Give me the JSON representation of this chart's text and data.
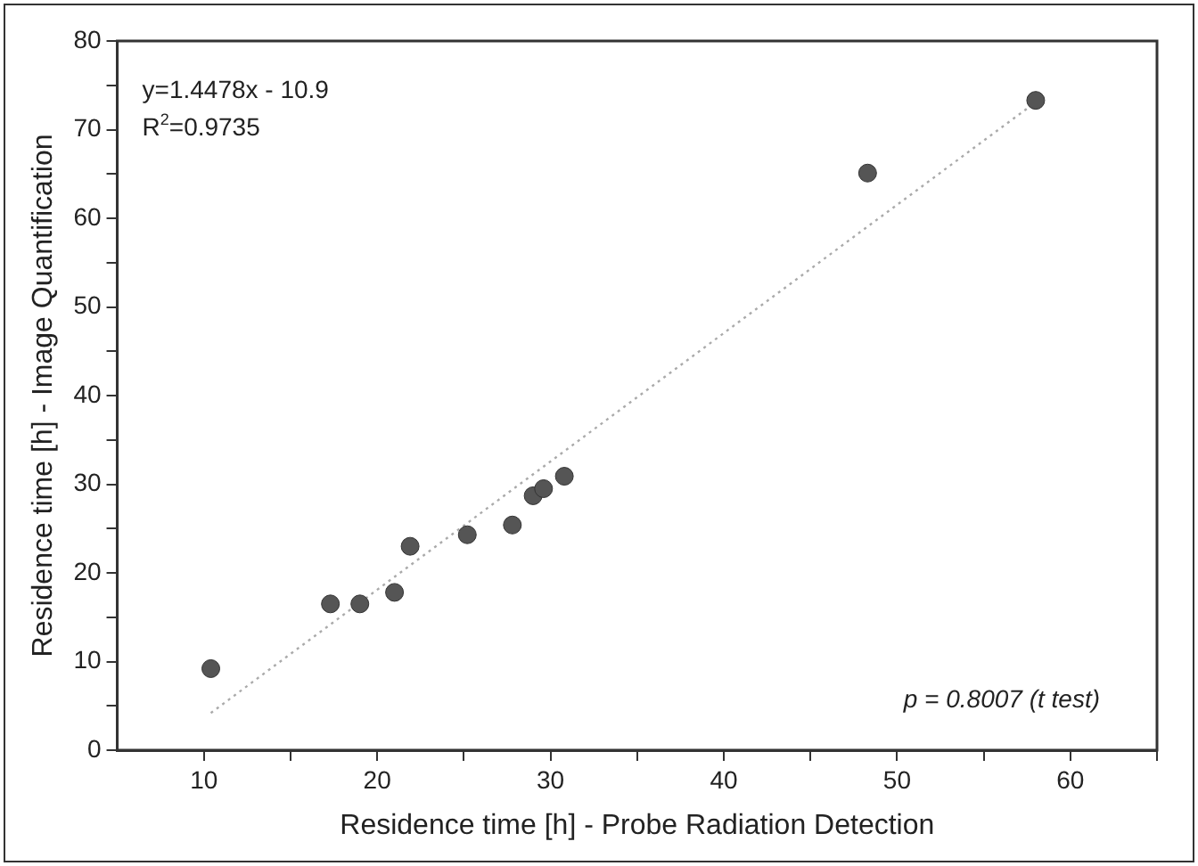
{
  "chart_data": {
    "type": "scatter",
    "xlabel": "Residence time [h] - Probe Radiation Detection",
    "ylabel": "Residence time [h] - Image Quantification",
    "x": [
      10.4,
      17.3,
      19.0,
      21.0,
      21.9,
      25.2,
      27.8,
      29.0,
      29.6,
      30.8,
      48.3,
      58.0
    ],
    "series": [
      {
        "color": "#555555",
        "marker": "circle",
        "values": [
          9.2,
          16.5,
          16.5,
          17.8,
          23.0,
          24.3,
          25.4,
          28.7,
          29.5,
          30.9,
          65.1,
          73.3
        ]
      },
      {
        "type": "line",
        "color": "#aaaaaa",
        "marker": "none",
        "line_style": "dotted",
        "x": [
          10.4,
          58.0
        ],
        "values": [
          4.2,
          73.1
        ]
      }
    ],
    "xlim": [
      5,
      65
    ],
    "xticks": [
      10,
      {
        "value": 15,
        "label": null
      },
      20,
      {
        "value": 25,
        "label": null
      },
      30,
      {
        "value": 35,
        "label": null
      },
      40,
      {
        "value": 45,
        "label": null
      },
      50,
      {
        "value": 55,
        "label": null
      },
      60,
      {
        "value": 65,
        "label": null
      }
    ],
    "ylim": [
      0,
      80
    ],
    "yticks": [
      0,
      {
        "value": 5,
        "label": null
      },
      10,
      {
        "value": 15,
        "label": null
      },
      20,
      {
        "value": 25,
        "label": null
      },
      30,
      {
        "value": 35,
        "label": null
      },
      40,
      {
        "value": 45,
        "label": null
      },
      50,
      {
        "value": 55,
        "label": null
      },
      60,
      {
        "value": 65,
        "label": null
      },
      70,
      {
        "value": 75,
        "label": null
      },
      80
    ],
    "annotations": [
      "y=1.4478x - 10.9",
      "R$^{2}$=0.9735",
      "p = 0.8007 (t test)"
    ],
    "grid": false,
    "legend": false
  }
}
